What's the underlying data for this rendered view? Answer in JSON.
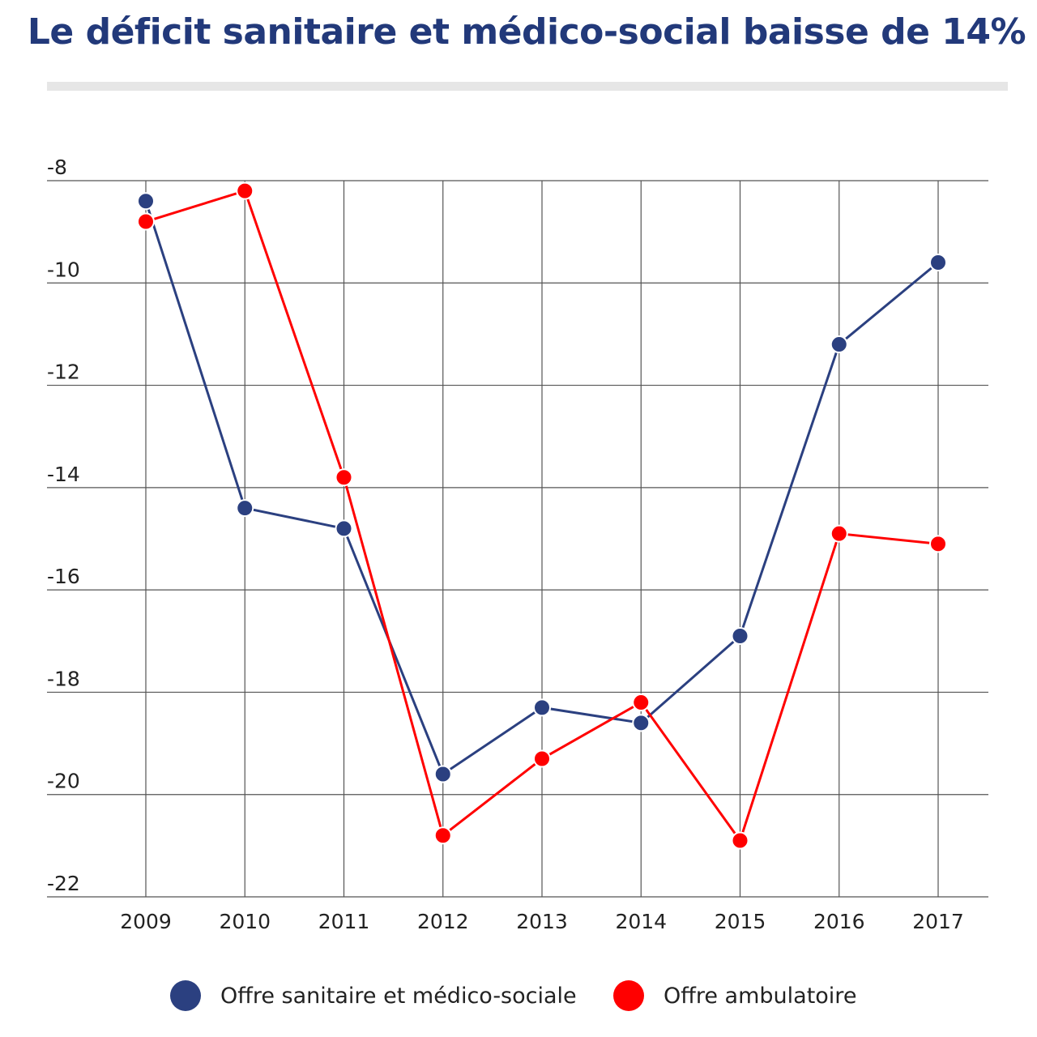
{
  "chart_data": {
    "type": "line",
    "title": "Le déficit sanitaire et médico-social baisse de 14%",
    "xlabel": "",
    "ylabel": "",
    "x": [
      "2009",
      "2010",
      "2011",
      "2012",
      "2013",
      "2014",
      "2015",
      "2016",
      "2017"
    ],
    "ylim": [
      -22,
      -8
    ],
    "yticks": [
      -8,
      -10,
      -12,
      -14,
      -16,
      -18,
      -20,
      -22
    ],
    "grid": true,
    "legend_position": "bottom",
    "series": [
      {
        "name": "Offre sanitaire et médico-sociale",
        "color": "#2b4080",
        "values": [
          -8.4,
          -14.4,
          -14.8,
          -19.6,
          -18.3,
          -18.6,
          -16.9,
          -11.2,
          -9.6
        ]
      },
      {
        "name": "Offre ambulatoire",
        "color": "#ff0000",
        "values": [
          -8.8,
          -8.2,
          -13.8,
          -20.8,
          -19.3,
          -18.2,
          -20.9,
          -14.9,
          -15.1
        ]
      }
    ]
  }
}
